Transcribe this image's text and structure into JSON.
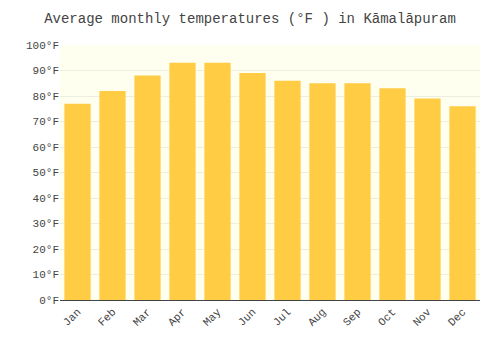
{
  "chart_data": {
    "type": "bar",
    "title": "Average monthly temperatures (°F ) in Kāmalāpuram",
    "categories": [
      "Jan",
      "Feb",
      "Mar",
      "Apr",
      "May",
      "Jun",
      "Jul",
      "Aug",
      "Sep",
      "Oct",
      "Nov",
      "Dec"
    ],
    "values": [
      77,
      82,
      88,
      93,
      93,
      89,
      86,
      85,
      85,
      83,
      79,
      76
    ],
    "color": "#FFCC44",
    "ylim": [
      0,
      100
    ],
    "yticks": [
      {
        "value": 0,
        "label": "0°F"
      },
      {
        "value": 10,
        "label": "10°F"
      },
      {
        "value": 20,
        "label": "20°F"
      },
      {
        "value": 30,
        "label": "30°F"
      },
      {
        "value": 40,
        "label": "40°F"
      },
      {
        "value": 50,
        "label": "50°F"
      },
      {
        "value": 60,
        "label": "60°F"
      },
      {
        "value": 70,
        "label": "70°F"
      },
      {
        "value": 80,
        "label": "80°F"
      },
      {
        "value": 90,
        "label": "90°F"
      },
      {
        "value": 100,
        "label": "100°F"
      }
    ],
    "grid": true
  }
}
